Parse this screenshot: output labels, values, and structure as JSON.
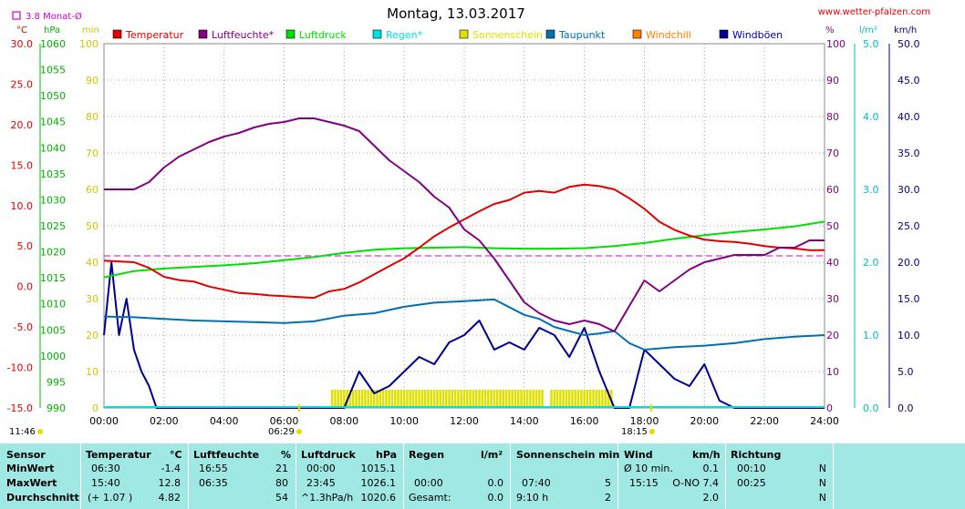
{
  "title": "Montag, 13.03.2017",
  "site": "www.wetter-pfalzen.com",
  "monat_label": "3.8 Monat-Ø",
  "unit_labels": {
    "celsius": "°C",
    "hpa": "hPa",
    "min": "min",
    "percent": "%",
    "rain": "l/m²",
    "kmh": "km/h"
  },
  "legend": [
    {
      "label": "Temperatur",
      "color": "#e00000"
    },
    {
      "label": "Luftfeuchte*",
      "color": "#800080"
    },
    {
      "label": "Luftdruck",
      "color": "#00e000"
    },
    {
      "label": "Regen*",
      "color": "#00e0e0"
    },
    {
      "label": "Sonnenschein",
      "color": "#e0e000"
    },
    {
      "label": "Taupunkt",
      "color": "#0070b0"
    },
    {
      "label": "Windchill",
      "color": "#ff8000"
    },
    {
      "label": "Windböen",
      "color": "#000090"
    }
  ],
  "axes": {
    "temp": [
      "30.0",
      "25.0",
      "20.0",
      "15.0",
      "10.0",
      "5.0",
      "0.0",
      "-5.0",
      "-10.0",
      "-15.0"
    ],
    "press": [
      "1060",
      "1055",
      "1050",
      "1045",
      "1040",
      "1035",
      "1030",
      "1025",
      "1020",
      "1015",
      "1010",
      "1005",
      "1000",
      "995",
      "990"
    ],
    "min": [
      "100",
      "90",
      "80",
      "70",
      "60",
      "50",
      "40",
      "30",
      "20",
      "10",
      "0"
    ],
    "hum": [
      "100",
      "90",
      "80",
      "70",
      "60",
      "50",
      "40",
      "30",
      "20",
      "10",
      "0"
    ],
    "rain": [
      "5.0",
      "4.0",
      "3.0",
      "2.0",
      "1.0",
      "0.0"
    ],
    "wind": [
      "50.0",
      "45.0",
      "40.0",
      "35.0",
      "30.0",
      "25.0",
      "20.0",
      "15.0",
      "10.0",
      "5.0",
      "0.0"
    ],
    "time": [
      "00:00",
      "02:00",
      "04:00",
      "06:00",
      "08:00",
      "10:00",
      "12:00",
      "14:00",
      "16:00",
      "18:00",
      "20:00",
      "22:00",
      "24:00"
    ]
  },
  "sun_times": {
    "sunrise_display": "11:46",
    "dawn": "06:29",
    "dusk": "18:15"
  },
  "chart_data": {
    "type": "line",
    "x_unit": "hour",
    "xlim": [
      0,
      24
    ],
    "series": [
      {
        "name": "Temperatur",
        "axis": "°C",
        "color": "#e00000",
        "x": [
          0,
          0.5,
          1,
          1.5,
          2,
          2.5,
          3,
          3.5,
          4,
          4.5,
          5,
          5.5,
          6,
          6.5,
          7,
          7.5,
          8,
          8.5,
          9,
          9.5,
          10,
          10.5,
          11,
          11.5,
          12,
          12.5,
          13,
          13.5,
          14,
          14.5,
          15,
          15.5,
          16,
          16.5,
          17,
          17.5,
          18,
          18.5,
          19,
          19.5,
          20,
          20.5,
          21,
          21.5,
          22,
          22.5,
          23,
          23.5,
          24
        ],
        "y": [
          3.2,
          3.1,
          3.0,
          2.3,
          1.2,
          0.8,
          0.6,
          0.0,
          -0.4,
          -0.8,
          -0.9,
          -1.1,
          -1.2,
          -1.3,
          -1.4,
          -0.6,
          -0.3,
          0.5,
          1.5,
          2.5,
          3.5,
          4.8,
          6.2,
          7.3,
          8.3,
          9.3,
          10.2,
          10.7,
          11.6,
          11.8,
          11.6,
          12.3,
          12.6,
          12.4,
          12.0,
          10.9,
          9.6,
          8.0,
          7.0,
          6.3,
          5.8,
          5.6,
          5.5,
          5.3,
          5.0,
          4.8,
          4.7,
          4.5,
          4.5
        ]
      },
      {
        "name": "Luftfeuchte*",
        "axis": "%",
        "color": "#800080",
        "x": [
          0,
          0.5,
          1,
          1.5,
          2,
          2.5,
          3,
          3.5,
          4,
          4.5,
          5,
          5.5,
          6,
          6.5,
          7,
          7.5,
          8,
          8.5,
          9,
          9.5,
          10,
          10.5,
          11,
          11.5,
          12,
          12.5,
          13,
          13.5,
          14,
          14.5,
          15,
          15.5,
          16,
          16.5,
          17,
          17.5,
          18,
          18.5,
          19,
          19.5,
          20,
          20.5,
          21,
          21.5,
          22,
          22.5,
          23,
          23.5,
          24
        ],
        "y": [
          60,
          60,
          60,
          62,
          66,
          69,
          71,
          73,
          74.5,
          75.5,
          77,
          78,
          78.5,
          79.5,
          79.5,
          78.5,
          77.5,
          76,
          72,
          68,
          65,
          62,
          58,
          55,
          49,
          46,
          41,
          35,
          29,
          26,
          24,
          23,
          24,
          23,
          21,
          28,
          35,
          32,
          35,
          38,
          40,
          41,
          42,
          42,
          42,
          44,
          44,
          46,
          46
        ]
      },
      {
        "name": "Luftdruck",
        "axis": "hPa",
        "color": "#00e000",
        "x": [
          0,
          1,
          2,
          3,
          4,
          5,
          6,
          7,
          8,
          9,
          10,
          11,
          12,
          13,
          14,
          15,
          16,
          17,
          18,
          19,
          20,
          21,
          22,
          23,
          24
        ],
        "y": [
          1015.1,
          1016.3,
          1016.8,
          1017.1,
          1017.4,
          1017.8,
          1018.4,
          1019.0,
          1019.8,
          1020.4,
          1020.7,
          1020.8,
          1020.9,
          1020.7,
          1020.6,
          1020.6,
          1020.7,
          1021.1,
          1021.7,
          1022.5,
          1023.2,
          1023.8,
          1024.3,
          1024.9,
          1025.8
        ]
      },
      {
        "name": "Taupunkt",
        "axis": "°C",
        "color": "#0070b0",
        "x": [
          0,
          1,
          2,
          3,
          4,
          5,
          6,
          7,
          8,
          9,
          10,
          11,
          12,
          13,
          14,
          14.5,
          15,
          15.5,
          16,
          16.5,
          17,
          17.5,
          18,
          19,
          20,
          21,
          22,
          23,
          24
        ],
        "y": [
          -3.7,
          -3.8,
          -4.0,
          -4.2,
          -4.3,
          -4.4,
          -4.5,
          -4.3,
          -3.6,
          -3.3,
          -2.5,
          -2.0,
          -1.8,
          -1.6,
          -3.5,
          -4.0,
          -5.0,
          -5.5,
          -6.0,
          -5.8,
          -5.5,
          -7.0,
          -7.8,
          -7.5,
          -7.3,
          -7.0,
          -6.5,
          -6.2,
          -6.0
        ]
      },
      {
        "name": "Windböen",
        "axis": "km/h",
        "color": "#000090",
        "x": [
          0,
          0.25,
          0.5,
          0.75,
          1,
          1.25,
          1.5,
          1.75,
          2,
          2.5,
          3,
          3.5,
          4,
          4.5,
          5,
          5.5,
          6,
          6.5,
          7,
          7.5,
          8,
          8.5,
          9,
          9.5,
          10,
          10.5,
          11,
          11.5,
          12,
          12.5,
          13,
          13.5,
          14,
          14.5,
          15,
          15.5,
          16,
          16.5,
          17,
          17.5,
          18,
          18.5,
          19,
          19.5,
          20,
          20.5,
          21,
          21.5,
          22,
          22.5,
          23,
          23.5,
          24
        ],
        "y": [
          10,
          20,
          10,
          15,
          8,
          5,
          3,
          0,
          0,
          0,
          0,
          0,
          0,
          0,
          0,
          0,
          0,
          0,
          0,
          0,
          0,
          5,
          2,
          3,
          5,
          7,
          6,
          9,
          10,
          12,
          8,
          9,
          8,
          11,
          10,
          7,
          11,
          5,
          0,
          0,
          8,
          6,
          4,
          3,
          6,
          1,
          0,
          0,
          0,
          0,
          0,
          0,
          0
        ]
      },
      {
        "name": "Sonnenschein",
        "axis": "min",
        "color": "#e0e000",
        "intervals": [
          [
            7.6,
            14.6
          ],
          [
            14.9,
            16.95
          ]
        ]
      }
    ]
  },
  "stats": {
    "headers": {
      "sensor": "Sensor",
      "temp": "Temperatur",
      "temp_unit": "°C",
      "hum": "Luftfeuchte",
      "hum_unit": "%",
      "press": "Luftdruck",
      "press_unit": "hPa",
      "rain": "Regen",
      "rain_unit": "l/m²",
      "sun": "Sonnenschein min",
      "wind": "Wind",
      "wind_unit": "km/h",
      "dir": "Richtung"
    },
    "labels": {
      "min": "MinWert",
      "max": "MaxWert",
      "avg": "Durchschnitt"
    },
    "min": {
      "temp_time": "06:30",
      "temp": "-1.4",
      "hum_time": "16:55",
      "hum": "21",
      "press_time": "00:00",
      "press": "1015.1",
      "wind_label": "Ø 10 min.",
      "wind": "0.1",
      "dir_time": "00:10",
      "dir": "N"
    },
    "max": {
      "temp_time": "15:40",
      "temp": "12.8",
      "hum_time": "06:35",
      "hum": "80",
      "press_time": "23:45",
      "press": "1026.1",
      "rain_time": "00:00",
      "rain": "0.0",
      "sun_time": "07:40",
      "sun": "5",
      "wind_time": "15:15",
      "wind": "O-NO 7.4",
      "dir_time": "00:25",
      "dir": "N"
    },
    "avg": {
      "temp_time": "(+ 1.07 )",
      "temp": "4.82",
      "hum": "54",
      "press_time": "^1.3hPa/h",
      "press": "1020.6",
      "rain_time": "Gesamt:",
      "rain": "0.0",
      "sun_time": "9:10 h",
      "sun": "2",
      "wind": "2.0",
      "dir": "N"
    }
  }
}
